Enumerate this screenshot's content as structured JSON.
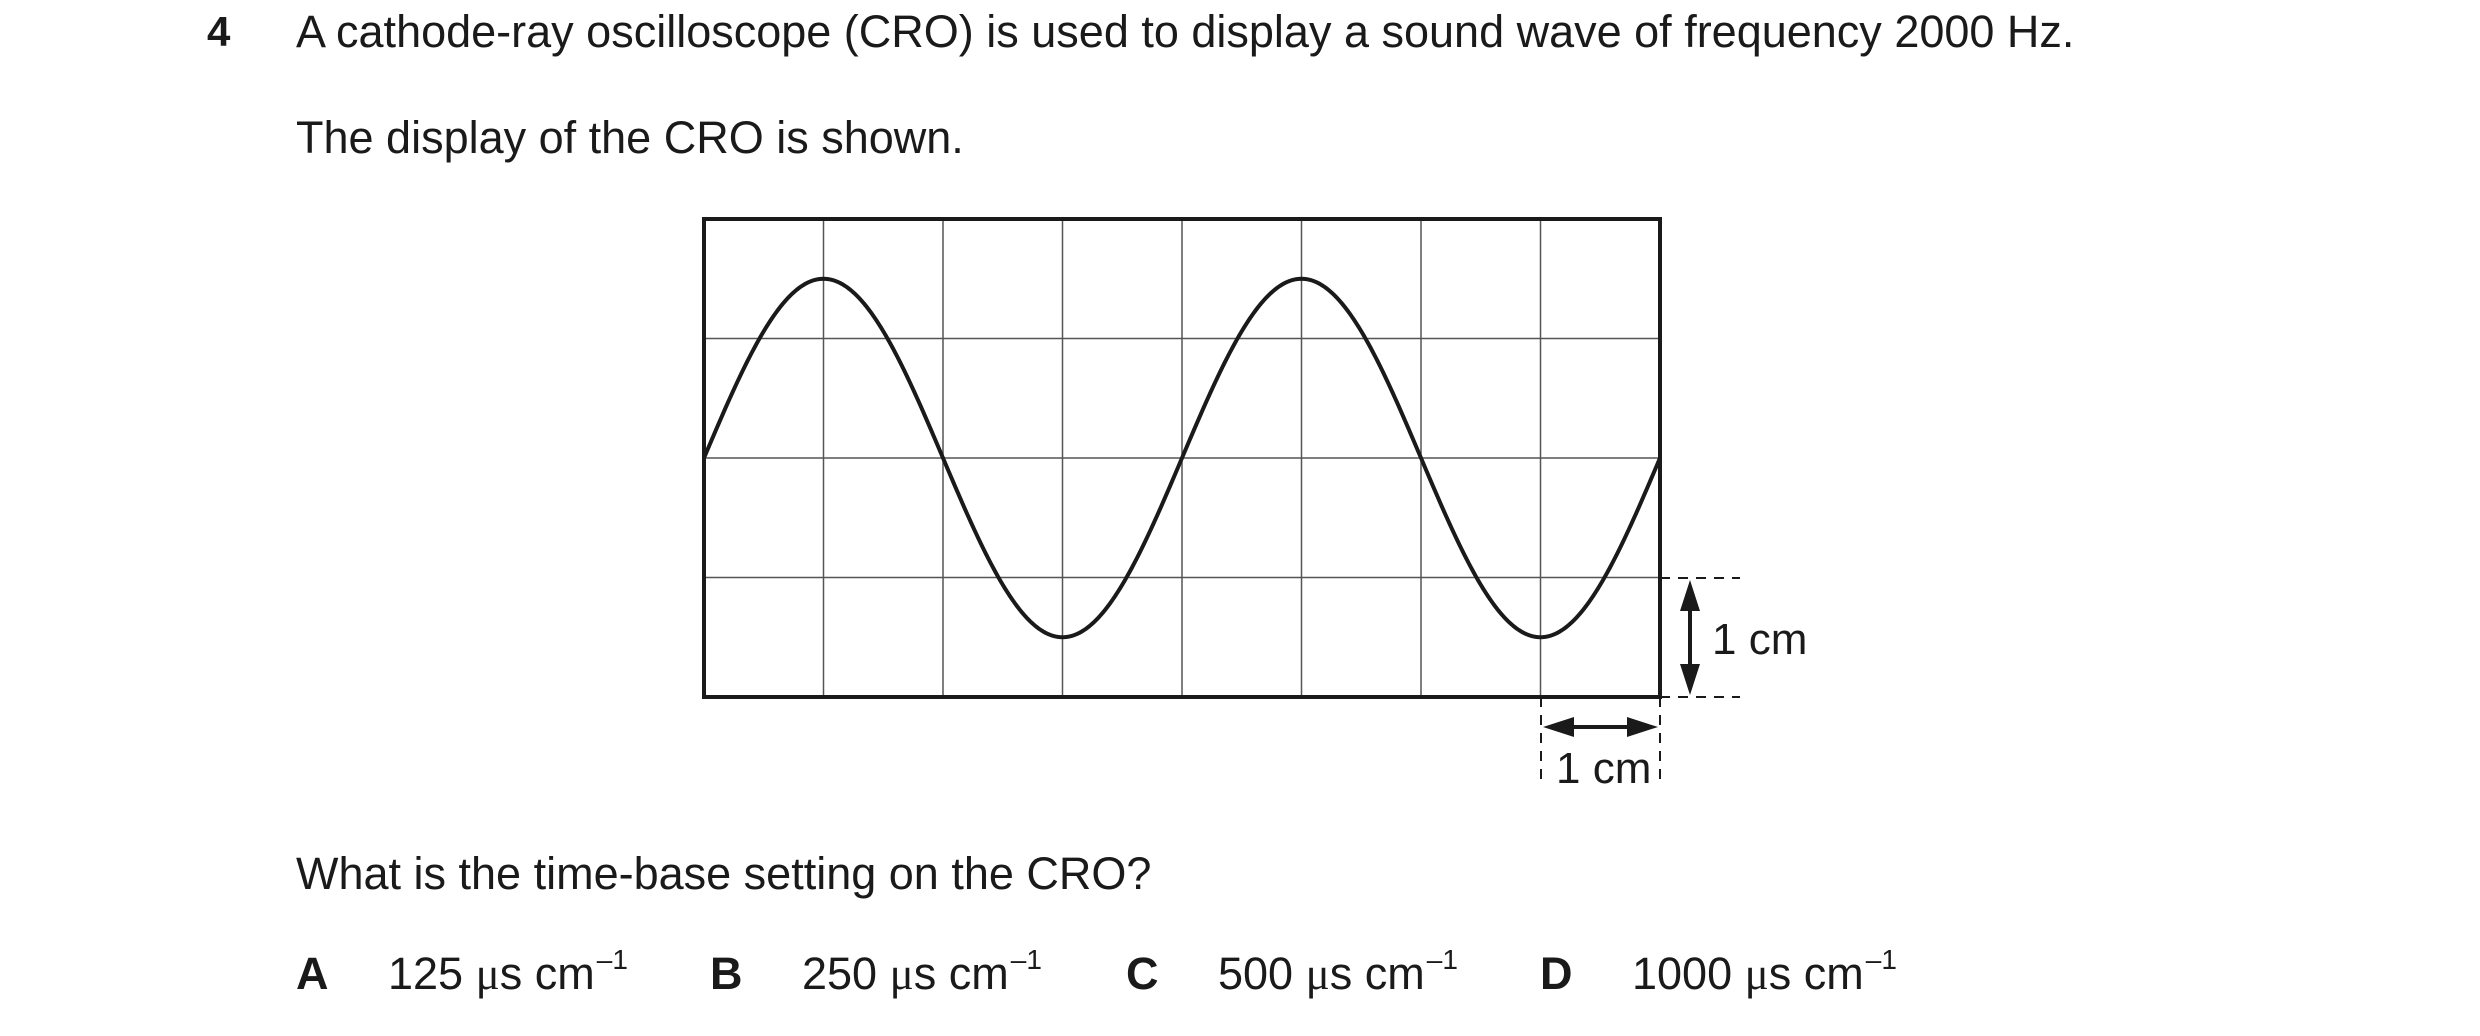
{
  "question": {
    "number": "4",
    "stem": "A cathode-ray oscilloscope (CRO) is used to display a sound wave of frequency 2000 Hz.",
    "line2": "The display of the CRO is shown.",
    "ask": "What is the time-base setting on the CRO?"
  },
  "figure": {
    "grid_columns": 8,
    "grid_rows": 4,
    "wave_cycles": 2,
    "amplitude_cm": 1.5,
    "vertical_scale_label": "1 cm",
    "horizontal_scale_label": "1 cm"
  },
  "options": [
    {
      "letter": "A",
      "number": "125",
      "unit_mu": "μ",
      "unit_rest": "s cm",
      "exponent": "–1"
    },
    {
      "letter": "B",
      "number": "250",
      "unit_mu": "μ",
      "unit_rest": "s cm",
      "exponent": "–1"
    },
    {
      "letter": "C",
      "number": "500",
      "unit_mu": "μ",
      "unit_rest": "s cm",
      "exponent": "–1"
    },
    {
      "letter": "D",
      "number": "1000",
      "unit_mu": "μ",
      "unit_rest": "s cm",
      "exponent": "–1"
    }
  ]
}
